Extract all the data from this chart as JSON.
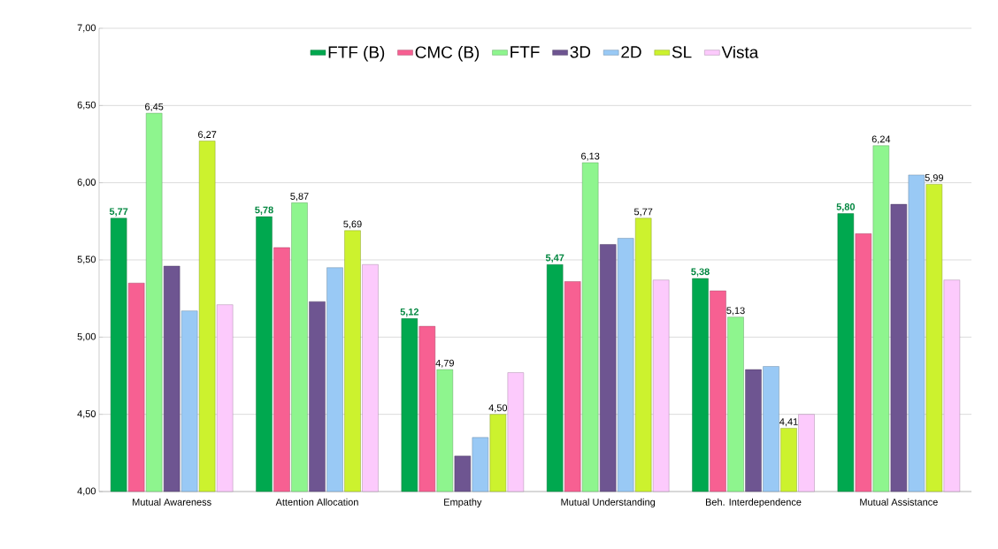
{
  "chart_data": {
    "type": "bar",
    "categories": [
      "Mutual Awareness",
      "Attention Allocation",
      "Empathy",
      "Mutual Understanding",
      "Beh. Interdependence",
      "Mutual Assistance"
    ],
    "series": [
      {
        "name": "FTF (B)",
        "color": "#00a84f",
        "values": [
          5.77,
          5.78,
          5.12,
          5.47,
          5.38,
          5.8
        ],
        "value_labels": [
          "5,77",
          "5,78",
          "5,12",
          "5,47",
          "5,38",
          "5,80"
        ]
      },
      {
        "name": "CMC (B)",
        "color": "#f76092",
        "values": [
          5.35,
          5.58,
          5.07,
          5.36,
          5.3,
          5.67
        ]
      },
      {
        "name": "FTF",
        "color": "#8ef58e",
        "values": [
          6.45,
          5.87,
          4.79,
          6.13,
          5.13,
          6.24
        ],
        "value_labels": [
          "6,45",
          "5,87",
          "4,79",
          "6,13",
          "5,13",
          "6,24"
        ]
      },
      {
        "name": "3D",
        "color": "#6e5591",
        "values": [
          5.46,
          5.23,
          4.23,
          5.6,
          4.79,
          5.86
        ]
      },
      {
        "name": "2D",
        "color": "#99c9f5",
        "values": [
          5.17,
          5.45,
          4.35,
          5.64,
          4.81,
          6.05
        ]
      },
      {
        "name": "SL",
        "color": "#ccf22e",
        "values": [
          6.27,
          5.69,
          4.5,
          5.77,
          4.41,
          5.99
        ],
        "value_labels": [
          "6,27",
          "5,69",
          "4,50",
          "5,77",
          "4,41",
          "5,99"
        ]
      },
      {
        "name": "Vista",
        "color": "#fccafc",
        "values": [
          5.21,
          5.47,
          4.77,
          5.37,
          4.5,
          5.37
        ]
      }
    ],
    "ylim": [
      4,
      7
    ],
    "yticks": [
      {
        "value": 4,
        "label": "4,00"
      },
      {
        "value": 4.5,
        "label": "4,50"
      },
      {
        "value": 5,
        "label": "5,00"
      },
      {
        "value": 5.5,
        "label": "5,50"
      },
      {
        "value": 6,
        "label": "6,00"
      },
      {
        "value": 6.5,
        "label": "6,50"
      },
      {
        "value": 7,
        "label": "7,00"
      }
    ],
    "grid": "y",
    "legend": "top"
  }
}
